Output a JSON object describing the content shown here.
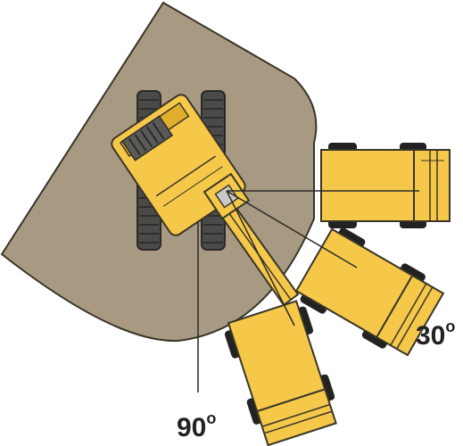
{
  "colors": {
    "work_area": "#a89a82",
    "truck_body": "#f5c84a",
    "truck_shade": "#e0ae2c",
    "outline": "#3a3528",
    "track": "#4a4a48",
    "tire": "#222222"
  },
  "labels": {
    "angle_30": "30",
    "angle_30_unit": "o",
    "angle_90": "90",
    "angle_90_unit": "o"
  }
}
